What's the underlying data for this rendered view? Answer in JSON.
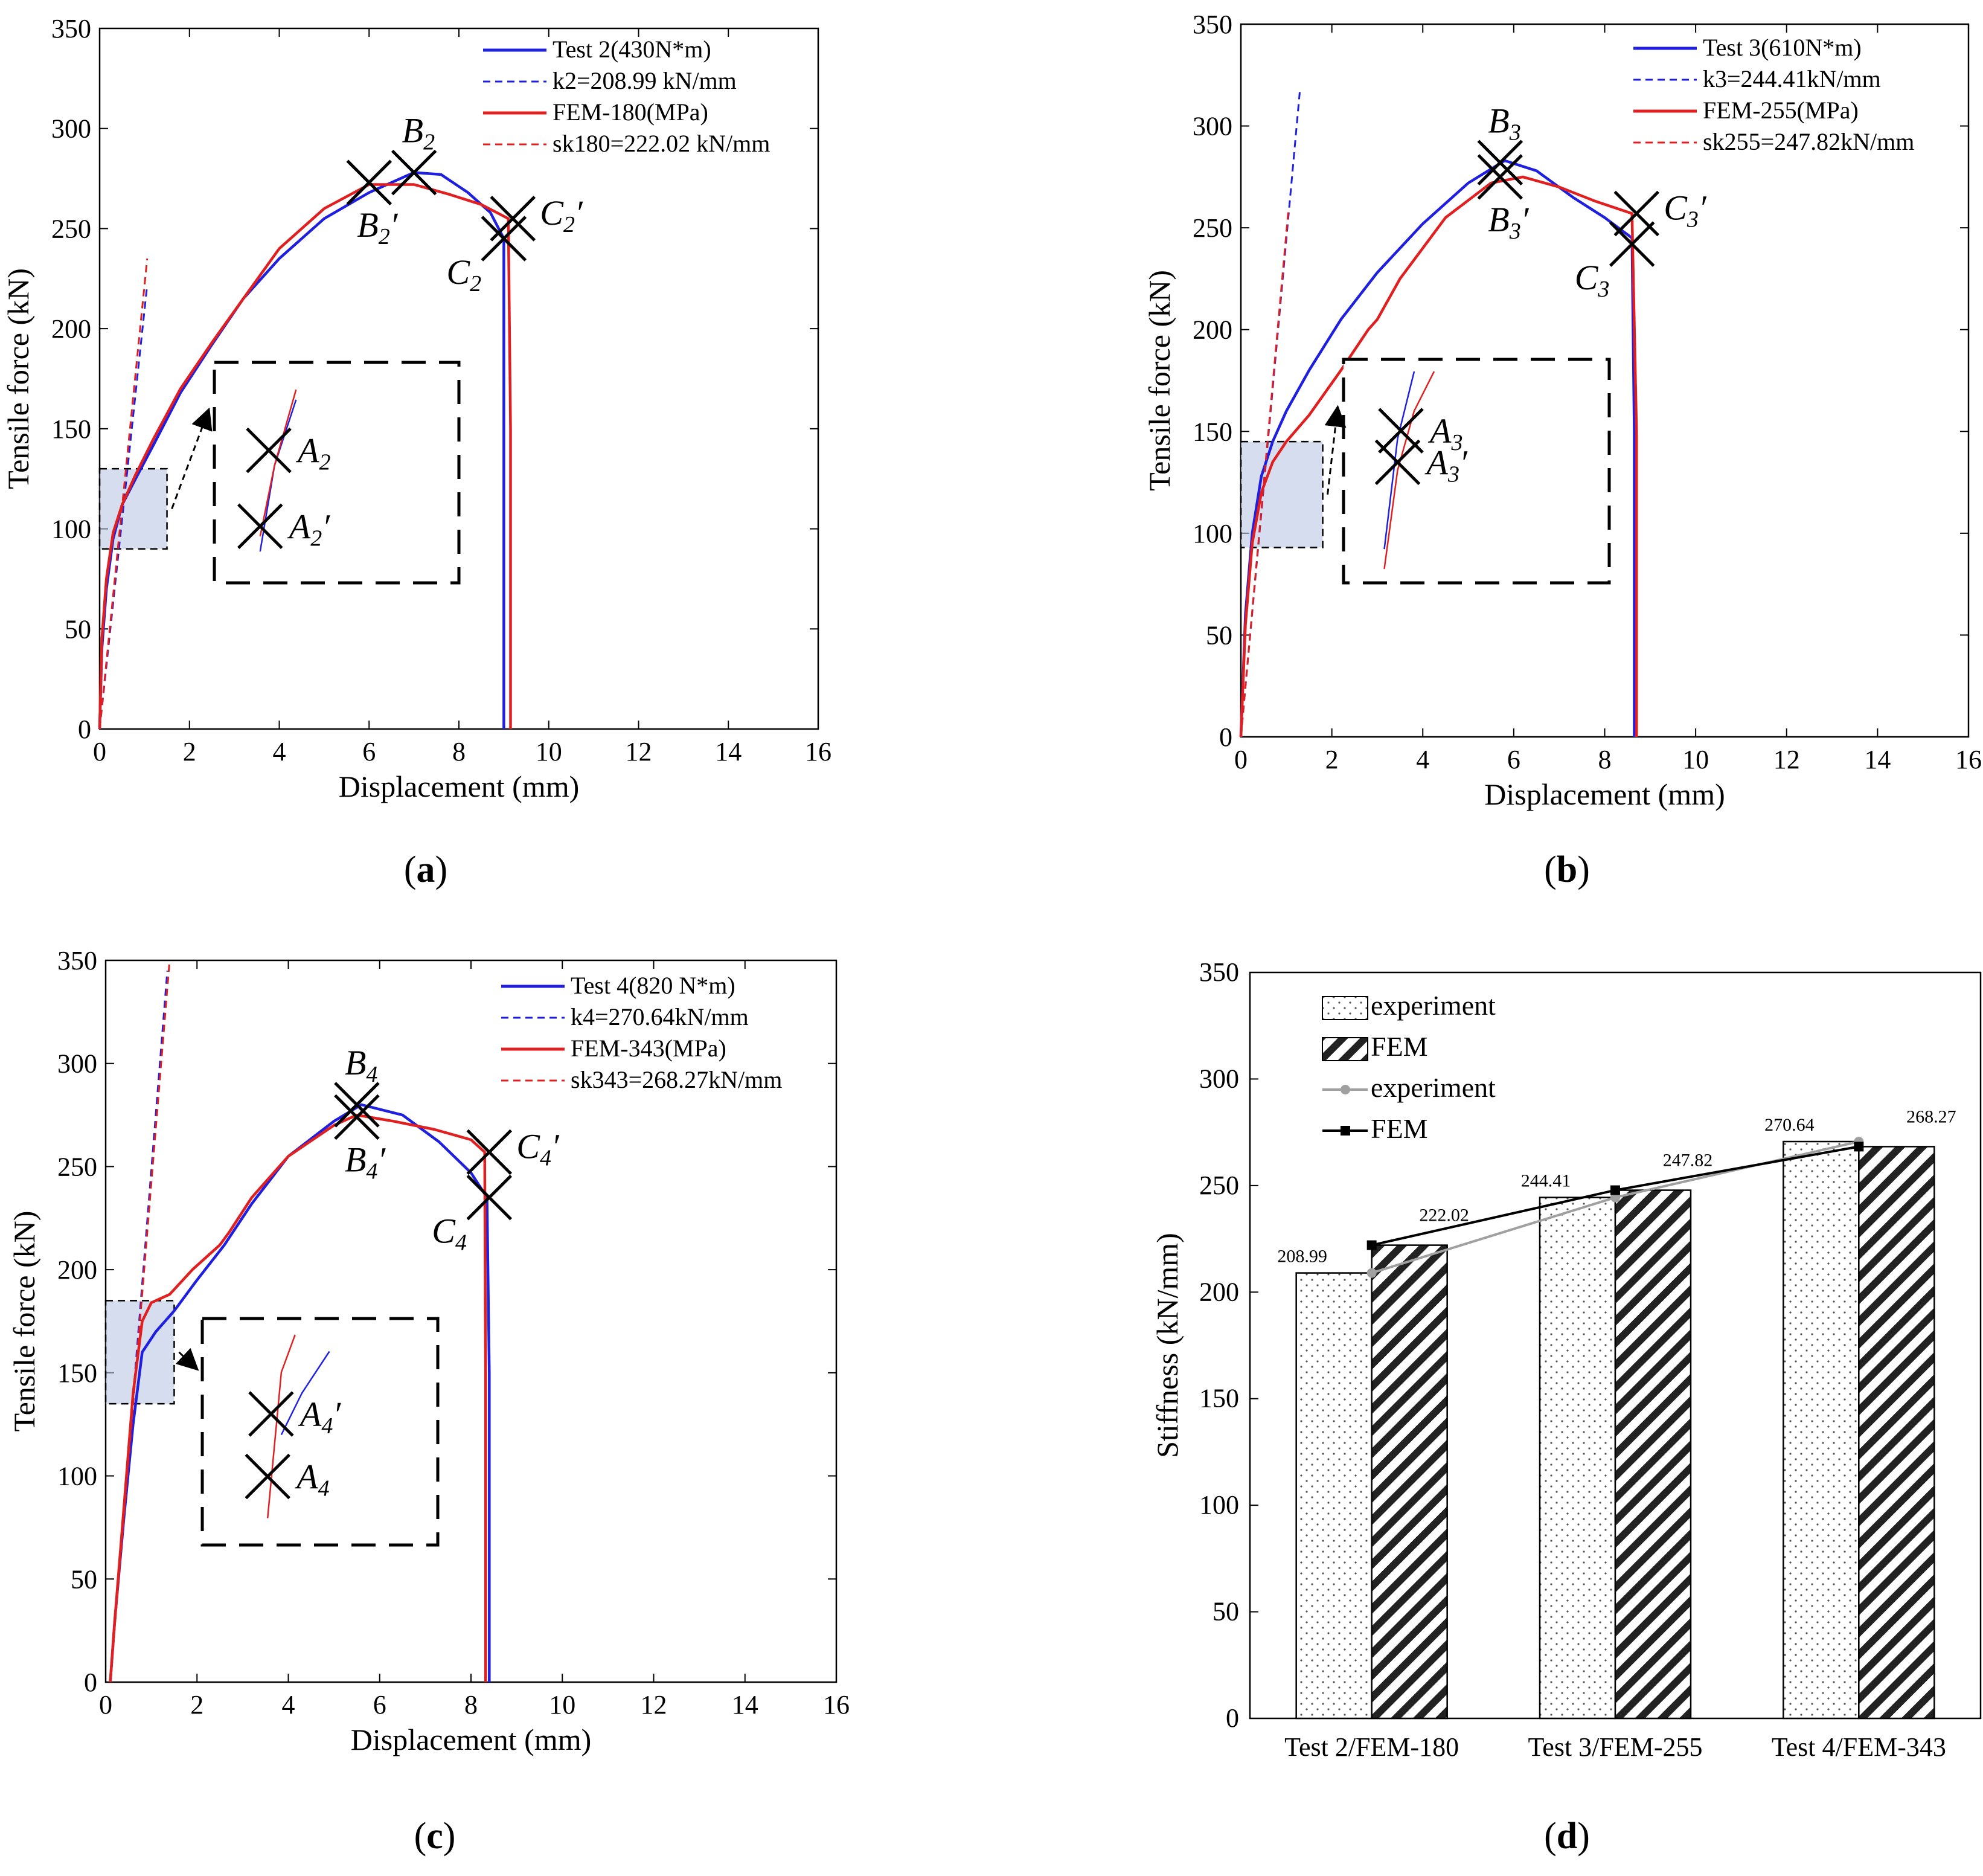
{
  "chart_data": [
    {
      "panel": "a",
      "type": "line",
      "xlabel": "Displacement (mm)",
      "ylabel": "Tensile force (kN)",
      "xlim": [
        0,
        16
      ],
      "ylim": [
        0,
        350
      ],
      "xticks": [
        0,
        2,
        4,
        6,
        8,
        10,
        12,
        14,
        16
      ],
      "yticks": [
        0,
        50,
        100,
        150,
        200,
        250,
        300,
        350
      ],
      "series": [
        {
          "name": "Test 2(430N*m)",
          "color": "#1f1fe0",
          "style": "solid",
          "x": [
            0,
            0.05,
            0.15,
            0.3,
            0.5,
            0.8,
            1.2,
            1.8,
            2.5,
            3.2,
            4,
            5,
            6,
            7,
            7.6,
            8.2,
            8.7,
            9.0,
            9.0,
            9.0
          ],
          "y": [
            0,
            40,
            70,
            95,
            112,
            125,
            142,
            168,
            192,
            215,
            235,
            255,
            268,
            278,
            277,
            268,
            258,
            245,
            150,
            0
          ]
        },
        {
          "name": "k2=208.99 kN/mm",
          "color": "#1f1fe0",
          "style": "dashed",
          "x": [
            0,
            1.05
          ],
          "y": [
            0,
            220
          ]
        },
        {
          "name": "FEM-180(MPa)",
          "color": "#e02020",
          "style": "solid",
          "x": [
            0,
            0.05,
            0.15,
            0.3,
            0.5,
            0.8,
            1.2,
            1.8,
            2.5,
            3.2,
            4,
            5,
            6,
            7,
            7.8,
            8.5,
            9.1,
            9.15,
            9.15
          ],
          "y": [
            0,
            45,
            75,
            98,
            112,
            127,
            145,
            170,
            193,
            215,
            240,
            260,
            272,
            272,
            267,
            262,
            255,
            150,
            0
          ]
        },
        {
          "name": "sk180=222.02 kN/mm",
          "color": "#e02020",
          "style": "dashed",
          "x": [
            0,
            1.06
          ],
          "y": [
            0,
            235
          ]
        }
      ],
      "markers": [
        {
          "label": "A",
          "sub": "2",
          "prime": false,
          "x": 0.42,
          "y": 115
        },
        {
          "label": "A",
          "sub": "2",
          "prime": true,
          "x": 0.3,
          "y": 100
        },
        {
          "label": "B",
          "sub": "2",
          "prime": false,
          "x": 7.0,
          "y": 278
        },
        {
          "label": "B",
          "sub": "2",
          "prime": true,
          "x": 6.0,
          "y": 273
        },
        {
          "label": "C",
          "sub": "2",
          "prime": false,
          "x": 9.0,
          "y": 245
        },
        {
          "label": "C",
          "sub": "2",
          "prime": true,
          "x": 9.2,
          "y": 255
        }
      ],
      "inset_region": {
        "x": [
          0,
          1.5
        ],
        "y": [
          90,
          130
        ]
      }
    },
    {
      "panel": "b",
      "type": "line",
      "xlabel": "Displacement (mm)",
      "ylabel": "Tensile force (kN)",
      "xlim": [
        0,
        16
      ],
      "ylim": [
        0,
        350
      ],
      "xticks": [
        0,
        2,
        4,
        6,
        8,
        10,
        12,
        14,
        16
      ],
      "yticks": [
        0,
        50,
        100,
        150,
        200,
        250,
        300,
        350
      ],
      "series": [
        {
          "name": "Test 3(610N*m)",
          "color": "#1f1fe0",
          "style": "solid",
          "x": [
            0,
            0.1,
            0.25,
            0.45,
            0.7,
            1.0,
            1.5,
            2.2,
            3.0,
            4.0,
            5.0,
            5.8,
            6.5,
            7.3,
            8.0,
            8.6,
            8.65,
            8.65
          ],
          "y": [
            0,
            60,
            100,
            128,
            145,
            160,
            180,
            205,
            228,
            252,
            272,
            283,
            278,
            265,
            255,
            245,
            150,
            0
          ]
        },
        {
          "name": "k3=244.41kN/mm",
          "color": "#1f1fe0",
          "style": "dashed",
          "x": [
            0,
            1.3
          ],
          "y": [
            0,
            318
          ]
        },
        {
          "name": "FEM-255(MPa)",
          "color": "#e02020",
          "style": "solid",
          "x": [
            0,
            0.1,
            0.25,
            0.45,
            0.7,
            1.0,
            1.5,
            2.2,
            2.8,
            3.0,
            3.5,
            4.5,
            5.5,
            6.2,
            7.0,
            7.8,
            8.6,
            8.7,
            8.7
          ],
          "y": [
            0,
            55,
            95,
            120,
            135,
            145,
            158,
            180,
            200,
            205,
            225,
            255,
            272,
            275,
            270,
            263,
            257,
            150,
            0
          ]
        },
        {
          "name": "sk255=247.82kN/mm",
          "color": "#e02020",
          "style": "dashed",
          "x": [
            0,
            1.05
          ],
          "y": [
            0,
            260
          ]
        }
      ],
      "markers": [
        {
          "label": "A",
          "sub": "3",
          "prime": false,
          "x": 0.5,
          "y": 130
        },
        {
          "label": "A",
          "sub": "3",
          "prime": true,
          "x": 0.45,
          "y": 122
        },
        {
          "label": "B",
          "sub": "3",
          "prime": false,
          "x": 5.7,
          "y": 282
        },
        {
          "label": "B",
          "sub": "3",
          "prime": true,
          "x": 5.7,
          "y": 275
        },
        {
          "label": "C",
          "sub": "3",
          "prime": false,
          "x": 8.6,
          "y": 242
        },
        {
          "label": "C",
          "sub": "3",
          "prime": true,
          "x": 8.7,
          "y": 257
        }
      ],
      "inset_region": {
        "x": [
          0,
          1.8
        ],
        "y": [
          93,
          145
        ]
      }
    },
    {
      "panel": "c",
      "type": "line",
      "xlabel": "Displacement (mm)",
      "ylabel": "Tensile force (kN)",
      "xlim": [
        0,
        16
      ],
      "ylim": [
        0,
        350
      ],
      "xticks": [
        0,
        2,
        4,
        6,
        8,
        10,
        12,
        14,
        16
      ],
      "yticks": [
        0,
        50,
        100,
        150,
        200,
        250,
        300,
        350
      ],
      "series": [
        {
          "name": "Test 4(820 N*m)",
          "color": "#1f1fe0",
          "style": "solid",
          "x": [
            0.1,
            0.2,
            0.4,
            0.6,
            0.8,
            1.1,
            1.5,
            2.0,
            2.6,
            3.2,
            4.0,
            5.0,
            5.6,
            6.5,
            7.3,
            8.0,
            8.35,
            8.4,
            8.4
          ],
          "y": [
            0,
            30,
            80,
            125,
            160,
            170,
            180,
            195,
            212,
            232,
            255,
            272,
            280,
            275,
            262,
            247,
            235,
            150,
            0
          ]
        },
        {
          "name": "k4=270.64kN/mm",
          "color": "#1f1fe0",
          "style": "dashed",
          "x": [
            0.1,
            1.35
          ],
          "y": [
            0,
            345
          ]
        },
        {
          "name": "FEM-343(MPa)",
          "color": "#e02020",
          "style": "solid",
          "x": [
            0.1,
            0.2,
            0.4,
            0.6,
            0.8,
            1.0,
            1.4,
            1.9,
            2.5,
            2.7,
            3.2,
            4.0,
            5.0,
            5.5,
            6.3,
            7.2,
            8.0,
            8.3,
            8.32,
            8.32
          ],
          "y": [
            0,
            30,
            85,
            140,
            175,
            184,
            188,
            200,
            212,
            218,
            235,
            255,
            270,
            275,
            272,
            268,
            263,
            257,
            150,
            0
          ]
        },
        {
          "name": "sk343=268.27kN/mm",
          "color": "#e02020",
          "style": "dashed",
          "x": [
            0.1,
            1.4
          ],
          "y": [
            0,
            350
          ]
        }
      ],
      "markers": [
        {
          "label": "A",
          "sub": "4",
          "prime": false,
          "x": 0.6,
          "y": 150
        },
        {
          "label": "A",
          "sub": "4",
          "prime": true,
          "x": 0.65,
          "y": 165
        },
        {
          "label": "B",
          "sub": "4",
          "prime": false,
          "x": 5.5,
          "y": 280
        },
        {
          "label": "B",
          "sub": "4",
          "prime": true,
          "x": 5.5,
          "y": 274
        },
        {
          "label": "C",
          "sub": "4",
          "prime": false,
          "x": 8.4,
          "y": 235
        },
        {
          "label": "C",
          "sub": "4",
          "prime": true,
          "x": 8.4,
          "y": 257
        }
      ],
      "inset_region": {
        "x": [
          0,
          1.5
        ],
        "y": [
          135,
          185
        ]
      }
    },
    {
      "panel": "d",
      "type": "bar",
      "ylabel": "Stiffness (kN/mm)",
      "ylim": [
        0,
        350
      ],
      "yticks": [
        0,
        50,
        100,
        150,
        200,
        250,
        300,
        350
      ],
      "categories": [
        "Test 2/FEM-180",
        "Test 3/FEM-255",
        "Test 4/FEM-343"
      ],
      "series": [
        {
          "name": "experiment",
          "kind": "bar",
          "pattern": "dots",
          "values": [
            208.99,
            244.41,
            270.64
          ]
        },
        {
          "name": "FEM",
          "kind": "bar",
          "pattern": "hatch",
          "values": [
            222.02,
            247.82,
            268.27
          ]
        },
        {
          "name": "experiment",
          "kind": "line",
          "color": "#a0a0a0",
          "values": [
            208.99,
            244.41,
            270.64
          ]
        },
        {
          "name": "FEM",
          "kind": "line",
          "color": "#000000",
          "values": [
            222.02,
            247.82,
            268.27
          ]
        }
      ],
      "value_labels": {
        "experiment": [
          "208.99",
          "244.41",
          "270.64"
        ],
        "FEM": [
          "222.02",
          "247.82",
          "268.27"
        ]
      }
    }
  ],
  "panel_labels": {
    "a": "a",
    "b": "b",
    "c": "c",
    "d": "d"
  }
}
